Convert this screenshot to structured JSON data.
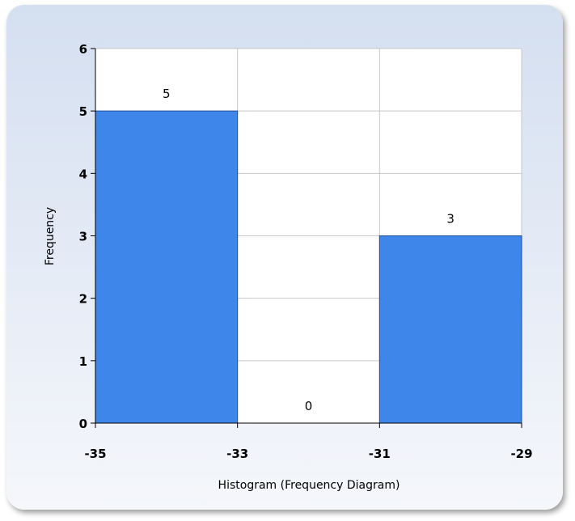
{
  "chart_data": {
    "type": "bar",
    "title": "",
    "xlabel": "Histogram (Frequency Diagram)",
    "ylabel": "Frequency",
    "bins": [
      {
        "from": -35,
        "to": -33,
        "value": 5
      },
      {
        "from": -33,
        "to": -31,
        "value": 0
      },
      {
        "from": -31,
        "to": -29,
        "value": 3
      }
    ],
    "x_ticks": [
      "-35",
      "-33",
      "-31",
      "-29"
    ],
    "y_ticks": [
      "0",
      "1",
      "2",
      "3",
      "4",
      "5",
      "6"
    ],
    "xlim": [
      -35,
      -29
    ],
    "ylim": [
      0,
      6
    ],
    "data_labels": [
      "5",
      "0",
      "3"
    ],
    "grid": true,
    "legend": "none",
    "colors": {
      "bar": "#3f86ea",
      "bar_edge": "#1e4f9c",
      "grid": "#c8c8c8",
      "axis": "#000000"
    }
  }
}
